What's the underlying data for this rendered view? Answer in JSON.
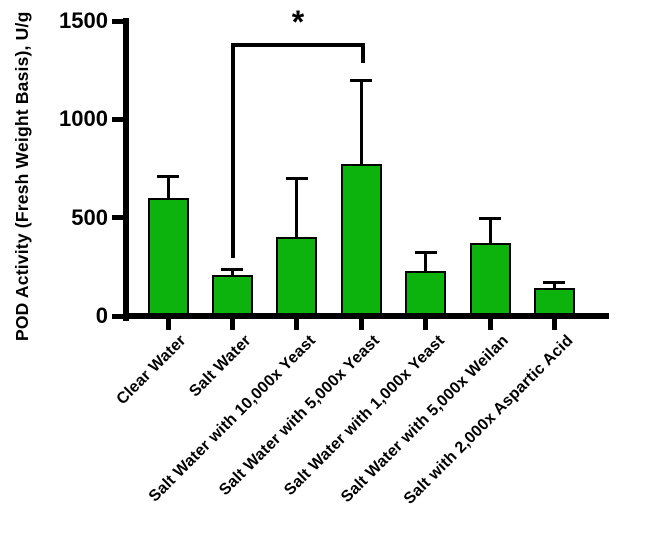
{
  "chart_data": {
    "type": "bar",
    "title": "",
    "ylabel": "POD Activity (Fresh Weight Basis), U/g",
    "xlabel": "",
    "categories": [
      "Clear Water",
      "Salt Water",
      "Salt Water with 10,000x Yeast",
      "Salt Water with 5,000x Yeast",
      "Salt Water with 1,000x Yeast",
      "Salt Water with 5,000x Weilan",
      "Salt with 2,000x Aspartic Acid"
    ],
    "values": [
      600,
      210,
      400,
      775,
      230,
      370,
      140
    ],
    "error_upper": [
      110,
      25,
      300,
      420,
      95,
      125,
      30
    ],
    "ylim": [
      0,
      1500
    ],
    "yticks": [
      0,
      500,
      1000,
      1500
    ],
    "ytick_labels": [
      "0",
      "500",
      "1000",
      "1500"
    ],
    "grid": false,
    "legend": null,
    "bar_color": "#0db30d",
    "bar_border_color": "#000000",
    "axis_color": "#000000",
    "significance": {
      "from_category": "Salt Water",
      "to_category": "Salt Water with 5,000x Yeast",
      "from_index": 1,
      "to_index": 3,
      "label": "*"
    }
  }
}
